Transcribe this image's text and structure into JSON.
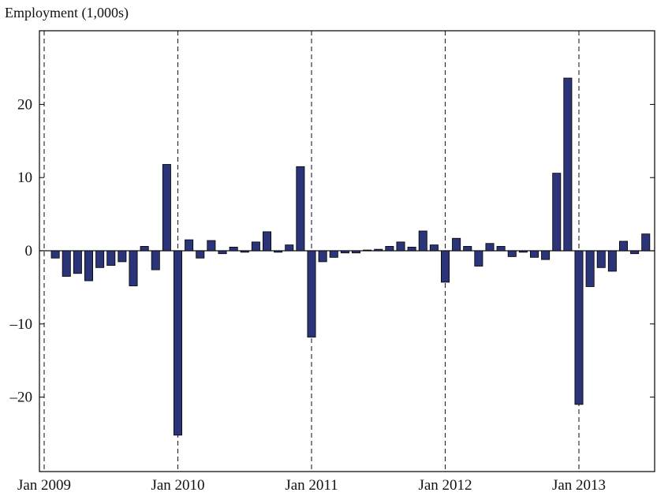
{
  "chart_data": {
    "type": "bar",
    "title": "",
    "ylabel": "Employment (1,000s)",
    "xlabel": "",
    "ylim": [
      -30,
      30
    ],
    "xlim": [
      2009,
      2013.6
    ],
    "yticks": [
      20,
      10,
      0,
      -10,
      -20
    ],
    "ytick_labels": [
      "20",
      "10",
      "0",
      "–10",
      "–20"
    ],
    "xticks": [
      {
        "x": 2009,
        "label": "Jan 2009"
      },
      {
        "x": 2010,
        "label": "Jan 2010"
      },
      {
        "x": 2011,
        "label": "Jan 2011"
      },
      {
        "x": 2012,
        "label": "Jan 2012"
      },
      {
        "x": 2013,
        "label": "Jan 2013"
      }
    ],
    "vlines": [
      2009,
      2010,
      2011,
      2012,
      2013
    ],
    "bar_color": "#2b3479",
    "grid": false,
    "x": [
      "2009-02",
      "2009-03",
      "2009-04",
      "2009-05",
      "2009-06",
      "2009-07",
      "2009-08",
      "2009-09",
      "2009-10",
      "2009-11",
      "2009-12",
      "2010-01",
      "2010-02",
      "2010-03",
      "2010-04",
      "2010-05",
      "2010-06",
      "2010-07",
      "2010-08",
      "2010-09",
      "2010-10",
      "2010-11",
      "2010-12",
      "2011-01",
      "2011-02",
      "2011-03",
      "2011-04",
      "2011-05",
      "2011-06",
      "2011-07",
      "2011-08",
      "2011-09",
      "2011-10",
      "2011-11",
      "2011-12",
      "2012-01",
      "2012-02",
      "2012-03",
      "2012-04",
      "2012-05",
      "2012-06",
      "2012-07",
      "2012-08",
      "2012-09",
      "2012-10",
      "2012-11",
      "2012-12",
      "2013-01",
      "2013-02",
      "2013-03",
      "2013-04",
      "2013-05",
      "2013-06",
      "2013-07"
    ],
    "values": [
      -1.0,
      -3.5,
      -3.1,
      -4.1,
      -2.3,
      -2.0,
      -1.5,
      -4.8,
      0.6,
      -2.6,
      11.8,
      -25.2,
      1.5,
      -1.0,
      1.4,
      -0.4,
      0.5,
      -0.2,
      1.2,
      2.6,
      -0.2,
      0.8,
      11.5,
      -11.8,
      -1.5,
      -0.9,
      -0.3,
      -0.3,
      0.1,
      0.2,
      0.6,
      1.2,
      0.5,
      2.7,
      0.8,
      -4.3,
      1.7,
      0.6,
      -2.1,
      1.0,
      0.6,
      -0.8,
      -0.2,
      -0.9,
      -1.2,
      10.6,
      23.6,
      -21.0,
      -4.9,
      -2.3,
      -2.8,
      1.3,
      -0.4,
      2.3
    ]
  }
}
